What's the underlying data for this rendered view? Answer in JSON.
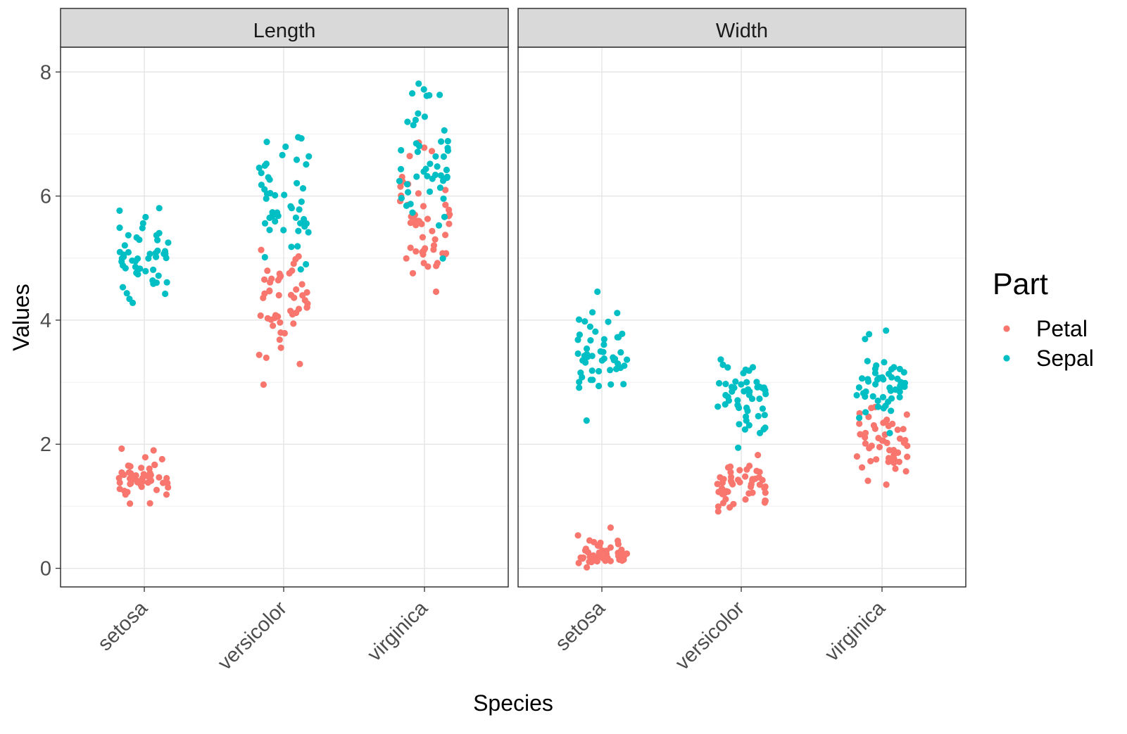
{
  "chart_data": {
    "type": "scatter",
    "jitter": true,
    "xlabel": "Species",
    "ylabel": "Values",
    "categories": [
      "setosa",
      "versicolor",
      "virginica"
    ],
    "ylim": [
      -0.3,
      8.4
    ],
    "yticks": [
      0,
      2,
      4,
      6,
      8
    ],
    "grid": true,
    "legend": {
      "title": "Part",
      "placement": "right",
      "entries": [
        {
          "name": "Petal",
          "color": "#F8766D"
        },
        {
          "name": "Sepal",
          "color": "#00BFC4"
        }
      ]
    },
    "panels": [
      {
        "title": "Length",
        "series": [
          {
            "name": "Petal",
            "color": "#F8766D",
            "groups": [
              {
                "category": "setosa",
                "values": [
                  1.4,
                  1.4,
                  1.3,
                  1.5,
                  1.4,
                  1.7,
                  1.4,
                  1.5,
                  1.4,
                  1.5,
                  1.5,
                  1.6,
                  1.4,
                  1.1,
                  1.2,
                  1.5,
                  1.3,
                  1.4,
                  1.7,
                  1.5,
                  1.7,
                  1.5,
                  1.0,
                  1.7,
                  1.9,
                  1.6,
                  1.6,
                  1.5,
                  1.4,
                  1.6,
                  1.6,
                  1.5,
                  1.5,
                  1.4,
                  1.5,
                  1.2,
                  1.3,
                  1.4,
                  1.3,
                  1.5,
                  1.3,
                  1.3,
                  1.3,
                  1.6,
                  1.9,
                  1.4,
                  1.6,
                  1.4,
                  1.5,
                  1.4
                ]
              },
              {
                "category": "versicolor",
                "values": [
                  4.7,
                  4.5,
                  4.9,
                  4.0,
                  4.6,
                  4.5,
                  4.7,
                  3.3,
                  4.6,
                  3.9,
                  3.5,
                  4.2,
                  4.0,
                  4.7,
                  3.6,
                  4.4,
                  4.5,
                  4.1,
                  4.5,
                  3.9,
                  4.8,
                  4.0,
                  4.9,
                  4.7,
                  4.3,
                  4.4,
                  4.8,
                  5.0,
                  4.5,
                  3.5,
                  3.8,
                  3.7,
                  3.9,
                  5.1,
                  4.5,
                  4.5,
                  4.7,
                  4.4,
                  4.1,
                  4.0,
                  4.4,
                  4.6,
                  4.0,
                  3.3,
                  4.2,
                  4.2,
                  4.2,
                  4.3,
                  3.0,
                  4.1
                ]
              },
              {
                "category": "virginica",
                "values": [
                  6.0,
                  5.1,
                  5.9,
                  5.6,
                  5.8,
                  6.6,
                  4.5,
                  6.3,
                  5.8,
                  6.1,
                  5.1,
                  5.3,
                  5.5,
                  5.0,
                  5.1,
                  5.3,
                  5.5,
                  6.7,
                  6.9,
                  5.0,
                  5.7,
                  4.9,
                  6.7,
                  4.9,
                  5.7,
                  6.0,
                  4.8,
                  4.9,
                  5.6,
                  5.8,
                  6.1,
                  6.4,
                  5.6,
                  5.1,
                  5.6,
                  6.1,
                  5.6,
                  5.5,
                  4.8,
                  5.4,
                  5.6,
                  5.1,
                  5.1,
                  5.9,
                  5.7,
                  5.2,
                  5.0,
                  5.2,
                  5.4,
                  5.1
                ]
              }
            ]
          },
          {
            "name": "Sepal",
            "color": "#00BFC4",
            "groups": [
              {
                "category": "setosa",
                "values": [
                  5.1,
                  4.9,
                  4.7,
                  4.6,
                  5.0,
                  5.4,
                  4.6,
                  5.0,
                  4.4,
                  4.9,
                  5.4,
                  4.8,
                  4.8,
                  4.3,
                  5.8,
                  5.7,
                  5.4,
                  5.1,
                  5.7,
                  5.1,
                  5.4,
                  5.1,
                  4.6,
                  5.1,
                  4.8,
                  5.0,
                  5.0,
                  5.2,
                  5.2,
                  4.7,
                  4.8,
                  5.4,
                  5.2,
                  5.5,
                  4.9,
                  5.0,
                  5.5,
                  4.9,
                  4.4,
                  5.1,
                  5.0,
                  4.5,
                  4.4,
                  5.0,
                  5.1,
                  4.8,
                  5.1,
                  4.6,
                  5.3,
                  5.0
                ]
              },
              {
                "category": "versicolor",
                "values": [
                  7.0,
                  6.4,
                  6.9,
                  5.5,
                  6.5,
                  5.7,
                  6.3,
                  4.9,
                  6.6,
                  5.2,
                  5.0,
                  5.9,
                  6.0,
                  6.1,
                  5.6,
                  6.7,
                  5.6,
                  5.8,
                  6.2,
                  5.6,
                  5.9,
                  6.1,
                  6.3,
                  6.1,
                  6.4,
                  6.6,
                  6.8,
                  6.7,
                  6.0,
                  5.7,
                  5.5,
                  5.5,
                  5.8,
                  6.0,
                  5.4,
                  6.0,
                  6.7,
                  6.3,
                  5.6,
                  5.5,
                  5.5,
                  6.1,
                  5.8,
                  5.0,
                  5.6,
                  5.7,
                  5.7,
                  6.2,
                  5.1,
                  5.7
                ]
              },
              {
                "category": "virginica",
                "values": [
                  6.3,
                  5.8,
                  7.1,
                  6.3,
                  6.5,
                  7.6,
                  4.9,
                  7.3,
                  6.7,
                  7.2,
                  6.5,
                  6.4,
                  6.8,
                  5.7,
                  5.8,
                  6.4,
                  6.5,
                  7.7,
                  7.7,
                  6.0,
                  6.9,
                  5.6,
                  7.7,
                  6.3,
                  6.7,
                  7.2,
                  6.2,
                  6.1,
                  6.4,
                  7.2,
                  7.4,
                  7.9,
                  6.4,
                  6.3,
                  6.1,
                  7.7,
                  6.3,
                  6.4,
                  6.0,
                  6.9,
                  6.7,
                  6.9,
                  5.8,
                  6.8,
                  6.7,
                  6.7,
                  6.3,
                  6.5,
                  6.2,
                  5.9
                ]
              }
            ]
          }
        ]
      },
      {
        "title": "Width",
        "series": [
          {
            "name": "Petal",
            "color": "#F8766D",
            "groups": [
              {
                "category": "setosa",
                "values": [
                  0.2,
                  0.2,
                  0.2,
                  0.2,
                  0.2,
                  0.4,
                  0.3,
                  0.2,
                  0.2,
                  0.1,
                  0.2,
                  0.2,
                  0.1,
                  0.1,
                  0.2,
                  0.4,
                  0.4,
                  0.3,
                  0.3,
                  0.3,
                  0.2,
                  0.4,
                  0.2,
                  0.5,
                  0.2,
                  0.2,
                  0.4,
                  0.2,
                  0.2,
                  0.2,
                  0.2,
                  0.4,
                  0.1,
                  0.2,
                  0.2,
                  0.2,
                  0.2,
                  0.1,
                  0.2,
                  0.2,
                  0.3,
                  0.3,
                  0.2,
                  0.6,
                  0.4,
                  0.3,
                  0.2,
                  0.2,
                  0.2,
                  0.2
                ]
              },
              {
                "category": "versicolor",
                "values": [
                  1.4,
                  1.5,
                  1.5,
                  1.3,
                  1.5,
                  1.3,
                  1.6,
                  1.0,
                  1.3,
                  1.4,
                  1.0,
                  1.5,
                  1.0,
                  1.4,
                  1.3,
                  1.4,
                  1.5,
                  1.0,
                  1.5,
                  1.1,
                  1.8,
                  1.3,
                  1.5,
                  1.2,
                  1.3,
                  1.4,
                  1.4,
                  1.7,
                  1.5,
                  1.0,
                  1.1,
                  1.0,
                  1.2,
                  1.6,
                  1.5,
                  1.6,
                  1.5,
                  1.3,
                  1.3,
                  1.3,
                  1.2,
                  1.4,
                  1.2,
                  1.0,
                  1.3,
                  1.2,
                  1.3,
                  1.3,
                  1.1,
                  1.3
                ]
              },
              {
                "category": "virginica",
                "values": [
                  2.5,
                  1.9,
                  2.1,
                  1.8,
                  2.2,
                  2.1,
                  1.7,
                  1.8,
                  1.8,
                  2.5,
                  2.0,
                  1.9,
                  2.1,
                  2.0,
                  2.4,
                  2.3,
                  1.8,
                  2.2,
                  2.3,
                  1.5,
                  2.3,
                  2.0,
                  2.0,
                  1.8,
                  2.1,
                  1.8,
                  1.8,
                  1.8,
                  2.1,
                  1.6,
                  1.9,
                  2.0,
                  2.2,
                  1.5,
                  1.4,
                  2.3,
                  2.4,
                  1.8,
                  1.8,
                  2.1,
                  2.4,
                  2.3,
                  1.9,
                  2.3,
                  2.5,
                  2.3,
                  1.9,
                  2.0,
                  2.3,
                  1.8
                ]
              }
            ]
          },
          {
            "name": "Sepal",
            "color": "#00BFC4",
            "groups": [
              {
                "category": "setosa",
                "values": [
                  3.5,
                  3.0,
                  3.2,
                  3.1,
                  3.6,
                  3.9,
                  3.4,
                  3.4,
                  2.9,
                  3.1,
                  3.7,
                  3.4,
                  3.0,
                  3.0,
                  4.0,
                  4.4,
                  3.9,
                  3.5,
                  3.8,
                  3.8,
                  3.4,
                  3.7,
                  3.6,
                  3.3,
                  3.4,
                  3.0,
                  3.4,
                  3.5,
                  3.4,
                  3.2,
                  3.1,
                  3.4,
                  4.1,
                  4.2,
                  3.1,
                  3.2,
                  3.5,
                  3.6,
                  3.0,
                  3.4,
                  3.5,
                  2.3,
                  3.2,
                  3.5,
                  3.8,
                  3.0,
                  3.8,
                  3.2,
                  3.7,
                  3.3
                ]
              },
              {
                "category": "versicolor",
                "values": [
                  3.2,
                  3.2,
                  3.1,
                  2.3,
                  2.8,
                  2.8,
                  3.3,
                  2.4,
                  2.9,
                  2.7,
                  2.0,
                  3.0,
                  2.2,
                  2.9,
                  2.9,
                  3.1,
                  3.0,
                  2.7,
                  2.2,
                  2.5,
                  3.2,
                  2.8,
                  2.5,
                  2.8,
                  2.9,
                  3.0,
                  2.8,
                  3.0,
                  2.9,
                  2.6,
                  2.4,
                  2.4,
                  2.7,
                  2.7,
                  3.0,
                  3.4,
                  3.1,
                  2.3,
                  3.0,
                  2.5,
                  2.6,
                  3.0,
                  2.6,
                  2.3,
                  2.7,
                  3.0,
                  2.9,
                  2.9,
                  2.5,
                  2.8
                ]
              },
              {
                "category": "virginica",
                "values": [
                  3.3,
                  2.7,
                  3.0,
                  2.9,
                  3.0,
                  3.0,
                  2.5,
                  2.9,
                  2.5,
                  3.6,
                  3.2,
                  2.7,
                  3.0,
                  2.5,
                  2.8,
                  3.2,
                  3.0,
                  3.8,
                  2.6,
                  2.2,
                  3.2,
                  2.8,
                  2.8,
                  2.7,
                  3.3,
                  3.2,
                  2.8,
                  3.0,
                  2.8,
                  3.0,
                  2.8,
                  3.8,
                  2.8,
                  2.8,
                  2.6,
                  3.0,
                  3.4,
                  3.1,
                  3.0,
                  3.1,
                  3.1,
                  3.1,
                  2.7,
                  3.2,
                  3.3,
                  3.0,
                  2.5,
                  3.0,
                  3.4,
                  3.0
                ]
              }
            ]
          }
        ]
      }
    ]
  }
}
